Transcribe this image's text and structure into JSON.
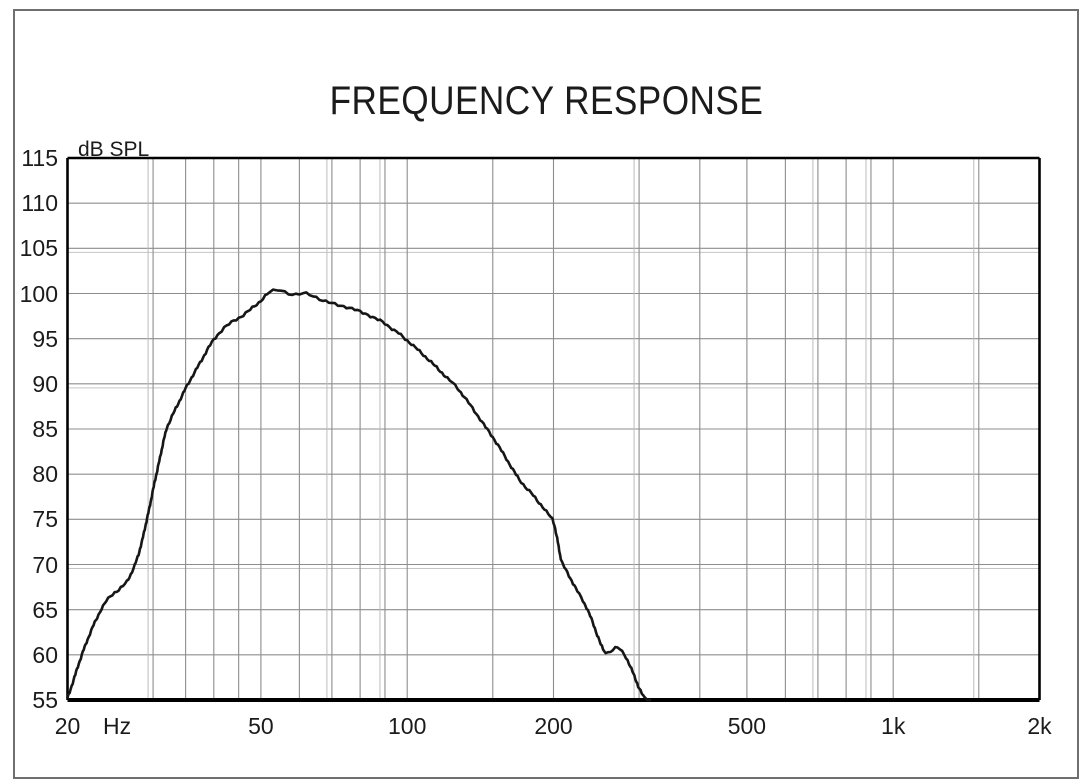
{
  "chart_data": {
    "type": "line",
    "title": "FREQUENCY RESPONSE",
    "ylabel": "dB SPL",
    "x_unit_label": "Hz",
    "x_scale": "log",
    "xlim": [
      20,
      2000
    ],
    "ylim": [
      55,
      115
    ],
    "y_tick_step": 5,
    "y_tick_labels": [
      "115",
      "110",
      "105",
      "100",
      "95",
      "90",
      "85",
      "80",
      "75",
      "70",
      "65",
      "60",
      "55"
    ],
    "x_ticks": [
      {
        "freq": 20,
        "label": "20"
      },
      {
        "freq": 50,
        "label": "50"
      },
      {
        "freq": 100,
        "label": "100"
      },
      {
        "freq": 200,
        "label": "200"
      },
      {
        "freq": 500,
        "label": "500"
      },
      {
        "freq": 1000,
        "label": "1k"
      },
      {
        "freq": 2000,
        "label": "2k"
      }
    ],
    "minor_grid_freqs": [
      30,
      35,
      40,
      45,
      50,
      60,
      70,
      80,
      90,
      100,
      150,
      200,
      300,
      400,
      500,
      600,
      700,
      800,
      900,
      1000,
      1500
    ],
    "grid_on": true,
    "legend": "none",
    "colors": {
      "curve": "#161616",
      "grid": "#8d8d8d",
      "axis_border": "#000000",
      "text": "#1b1b1b"
    },
    "series": [
      {
        "name": "SPL",
        "points": [
          [
            20,
            55.2
          ],
          [
            20.5,
            56.9
          ],
          [
            21,
            58.7
          ],
          [
            21.5,
            60.3
          ],
          [
            22,
            61.7
          ],
          [
            22.5,
            63.0
          ],
          [
            23,
            64.1
          ],
          [
            23.5,
            65.1
          ],
          [
            24,
            65.9
          ],
          [
            24.5,
            66.5
          ],
          [
            25,
            66.9
          ],
          [
            25.5,
            67.2
          ],
          [
            26,
            67.6
          ],
          [
            26.5,
            68.1
          ],
          [
            27,
            68.9
          ],
          [
            27.5,
            69.9
          ],
          [
            28,
            71.1
          ],
          [
            28.5,
            72.7
          ],
          [
            29,
            74.5
          ],
          [
            29.5,
            76.3
          ],
          [
            30,
            78.3
          ],
          [
            30.5,
            80.1
          ],
          [
            31,
            81.8
          ],
          [
            31.5,
            83.6
          ],
          [
            32,
            85.1
          ],
          [
            33,
            86.7
          ],
          [
            34,
            88.1
          ],
          [
            35,
            89.5
          ],
          [
            36,
            90.7
          ],
          [
            37,
            91.8
          ],
          [
            38,
            92.9
          ],
          [
            39,
            94.0
          ],
          [
            40,
            94.9
          ],
          [
            41,
            95.6
          ],
          [
            42,
            96.2
          ],
          [
            43,
            96.6
          ],
          [
            44,
            97.0
          ],
          [
            45,
            97.3
          ],
          [
            46,
            97.6
          ],
          [
            47,
            98.0
          ],
          [
            48,
            98.4
          ],
          [
            49,
            98.8
          ],
          [
            50,
            99.2
          ],
          [
            51,
            99.7
          ],
          [
            52,
            100.1
          ],
          [
            53,
            100.3
          ],
          [
            54,
            100.4
          ],
          [
            55,
            100.4
          ],
          [
            56,
            100.2
          ],
          [
            57,
            100.0
          ],
          [
            58,
            99.9
          ],
          [
            59,
            99.85
          ],
          [
            60,
            99.9
          ],
          [
            61,
            100.0
          ],
          [
            62,
            100.0
          ],
          [
            63,
            99.9
          ],
          [
            64,
            99.75
          ],
          [
            65,
            99.6
          ],
          [
            66,
            99.4
          ],
          [
            67,
            99.2
          ],
          [
            68,
            99.1
          ],
          [
            69,
            99.0
          ],
          [
            70,
            98.9
          ],
          [
            72,
            98.75
          ],
          [
            74,
            98.6
          ],
          [
            76,
            98.4
          ],
          [
            78,
            98.2
          ],
          [
            80,
            98.0
          ],
          [
            82,
            97.8
          ],
          [
            84,
            97.5
          ],
          [
            86,
            97.2
          ],
          [
            88,
            97.0
          ],
          [
            90,
            96.7
          ],
          [
            92,
            96.3
          ],
          [
            94,
            95.9
          ],
          [
            96,
            95.6
          ],
          [
            98,
            95.2
          ],
          [
            100,
            94.8
          ],
          [
            103,
            94.2
          ],
          [
            106,
            93.6
          ],
          [
            109,
            93.0
          ],
          [
            112,
            92.4
          ],
          [
            115,
            91.8
          ],
          [
            118,
            91.2
          ],
          [
            121,
            90.6
          ],
          [
            124,
            90.1
          ],
          [
            127,
            89.5
          ],
          [
            130,
            88.8
          ],
          [
            135,
            87.6
          ],
          [
            140,
            86.4
          ],
          [
            145,
            85.2
          ],
          [
            150,
            84.1
          ],
          [
            155,
            82.9
          ],
          [
            160,
            81.7
          ],
          [
            165,
            80.5
          ],
          [
            170,
            79.4
          ],
          [
            175,
            78.6
          ],
          [
            180,
            77.9
          ],
          [
            185,
            77.1
          ],
          [
            190,
            76.4
          ],
          [
            195,
            75.6
          ],
          [
            199,
            75.0
          ],
          [
            201,
            74.3
          ],
          [
            203,
            73.2
          ],
          [
            205,
            71.9
          ],
          [
            207,
            70.7
          ],
          [
            209,
            70.0
          ],
          [
            212,
            69.4
          ],
          [
            215,
            68.8
          ],
          [
            218,
            68.2
          ],
          [
            222,
            67.4
          ],
          [
            226,
            66.7
          ],
          [
            230,
            66.0
          ],
          [
            234,
            65.2
          ],
          [
            238,
            64.3
          ],
          [
            242,
            63.3
          ],
          [
            246,
            62.2
          ],
          [
            250,
            61.2
          ],
          [
            253,
            60.6
          ],
          [
            256,
            60.3
          ],
          [
            259,
            60.25
          ],
          [
            262,
            60.4
          ],
          [
            265,
            60.6
          ],
          [
            268,
            60.75
          ],
          [
            271,
            60.8
          ],
          [
            274,
            60.6
          ],
          [
            277,
            60.3
          ],
          [
            280,
            60.0
          ],
          [
            284,
            59.4
          ],
          [
            288,
            58.7
          ],
          [
            292,
            57.9
          ],
          [
            296,
            57.1
          ],
          [
            300,
            56.3
          ],
          [
            304,
            55.7
          ],
          [
            308,
            55.2
          ],
          [
            312,
            55.05
          ],
          [
            316,
            55.0
          ]
        ]
      }
    ]
  }
}
